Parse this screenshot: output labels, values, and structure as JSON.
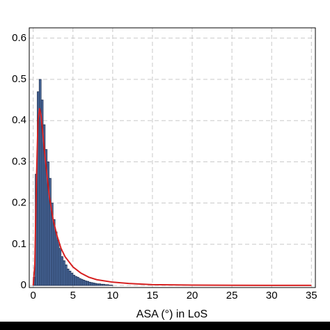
{
  "chart_data": {
    "type": "histogram",
    "x_label": "ASA (°) in LoS",
    "bins": [
      0,
      0.25,
      0.5,
      0.75,
      1,
      1.25,
      1.5,
      1.75,
      2,
      2.25,
      2.5,
      2.75,
      3,
      3.25,
      3.5,
      3.75,
      4,
      4.25,
      4.5,
      4.75,
      5,
      5.25,
      5.5,
      5.75,
      6,
      6.25,
      6.5,
      6.75,
      7,
      7.25,
      7.5,
      7.75,
      8,
      8.25,
      8.5,
      8.75,
      9,
      9.25,
      9.5,
      9.75,
      10
    ],
    "counts": [
      0.02,
      0.27,
      0.47,
      0.5,
      0.45,
      0.39,
      0.33,
      0.3,
      0.26,
      0.2,
      0.16,
      0.13,
      0.11,
      0.09,
      0.07,
      0.06,
      0.05,
      0.04,
      0.035,
      0.03,
      0.025,
      0.022,
      0.02,
      0.017,
      0.015,
      0.013,
      0.011,
      0.01,
      0.008,
      0.007,
      0.006,
      0.005,
      0.004,
      0.004,
      0.003,
      0.003,
      0.002,
      0.002,
      0.001,
      0.001
    ],
    "color": "#4a6a9c",
    "edge_color": "#1f2f4f",
    "line": {
      "x": [
        0,
        0.2,
        0.4,
        0.6,
        0.8,
        1,
        1.25,
        1.5,
        2,
        2.5,
        3,
        3.5,
        4,
        5,
        6,
        7,
        8,
        10,
        12,
        15,
        20,
        25,
        30,
        35
      ],
      "values": [
        0,
        0.05,
        0.25,
        0.4,
        0.43,
        0.41,
        0.36,
        0.31,
        0.22,
        0.16,
        0.12,
        0.09,
        0.07,
        0.045,
        0.03,
        0.02,
        0.014,
        0.008,
        0.005,
        0.002,
        0.001,
        0.0005,
        0.0003,
        0.0002
      ],
      "color": "#d62020"
    },
    "xlim": [
      -0.5,
      35.5
    ],
    "ylim": [
      -0.005,
      0.625
    ],
    "xticks": [
      0,
      5,
      10,
      15,
      20,
      25,
      30,
      35
    ],
    "yticks": [
      0,
      0.1,
      0.2,
      0.3,
      0.4,
      0.5,
      0.6
    ],
    "grid": true
  }
}
